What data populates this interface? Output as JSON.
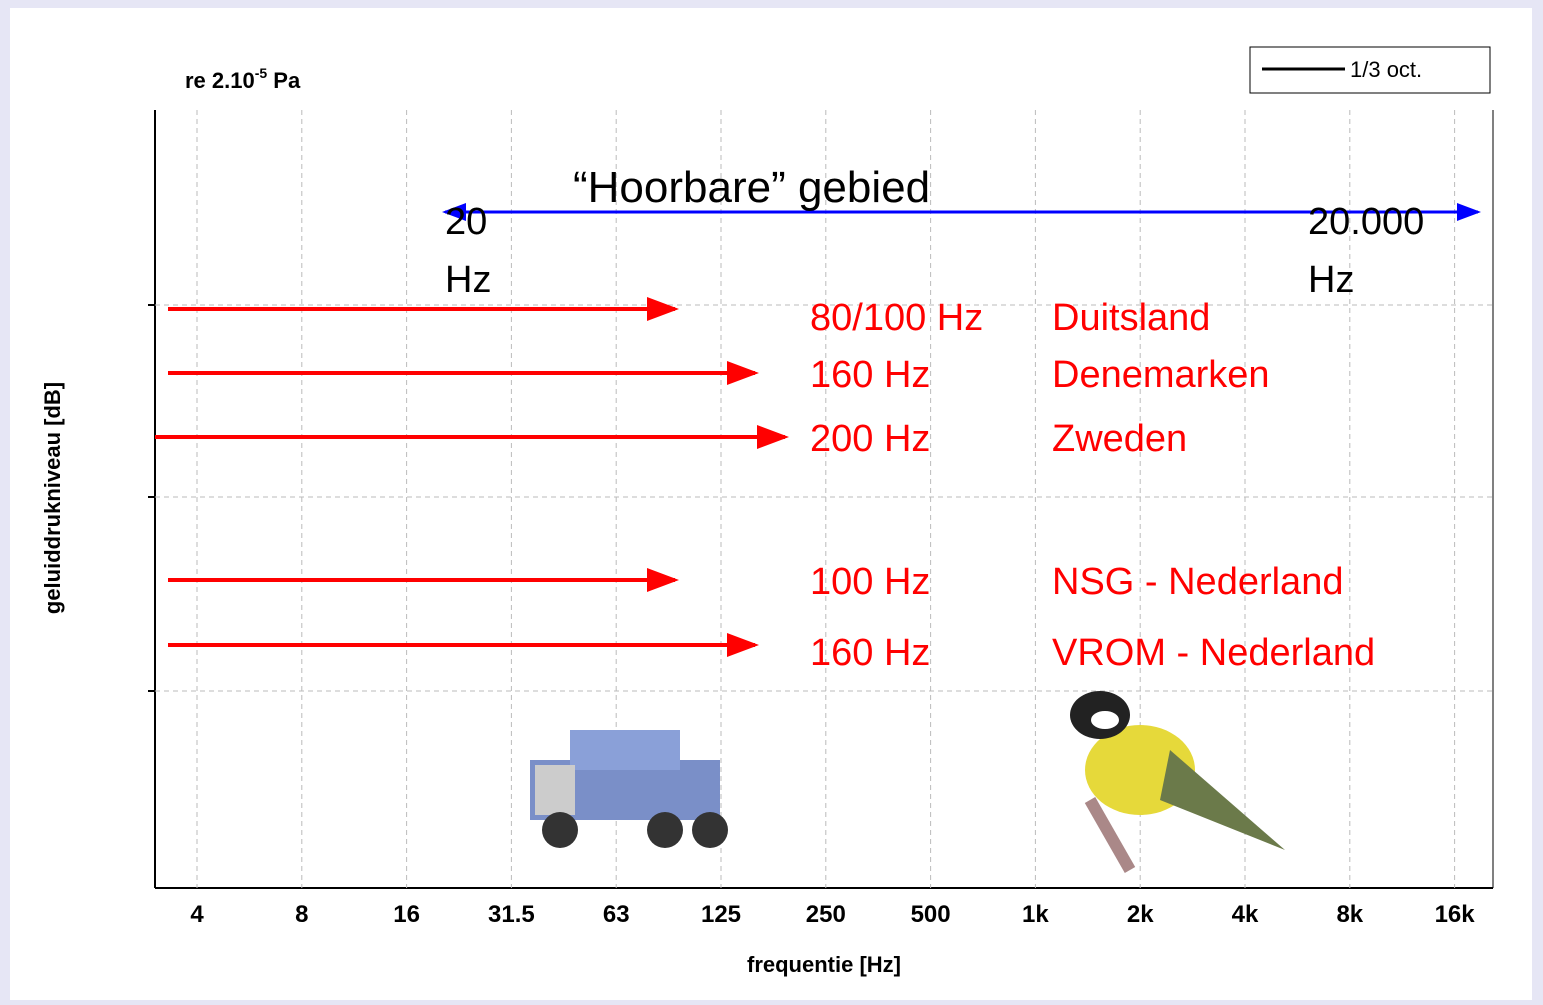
{
  "unit_label": {
    "prefix": "re 2.10",
    "exponent": "-5",
    "suffix": " Pa"
  },
  "legend": "1/3 oct.",
  "y_axis_label": "geluiddrukniveau [dB]",
  "x_axis_label": "frequentie [Hz]",
  "x_ticks": [
    "4",
    "8",
    "16",
    "31.5",
    "63",
    "125",
    "250",
    "500",
    "1k",
    "2k",
    "4k",
    "8k",
    "16k"
  ],
  "audible_range": {
    "title": "“Hoorbare” gebied",
    "low": [
      "20",
      "Hz"
    ],
    "high": [
      "20.000",
      "Hz"
    ]
  },
  "limits": [
    {
      "frequency": "80/100 Hz",
      "country": "Duitsland"
    },
    {
      "frequency": "160 Hz",
      "country": "Denemarken"
    },
    {
      "frequency": "200 Hz",
      "country": "Zweden"
    },
    {
      "frequency": "100 Hz",
      "country": "NSG - Nederland"
    },
    {
      "frequency": "160 Hz",
      "country": "VROM - Nederland"
    }
  ]
}
